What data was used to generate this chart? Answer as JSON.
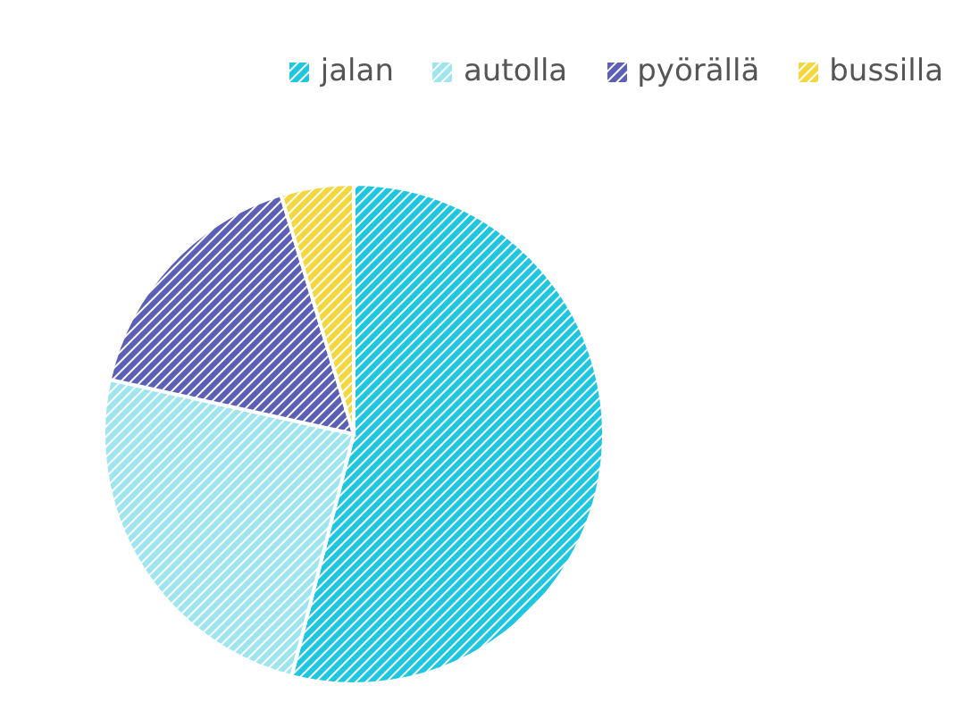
{
  "chart_data": {
    "type": "pie",
    "categories": [
      "jalan",
      "autolla",
      "pyörällä",
      "bussilla"
    ],
    "values": [
      54,
      24.5,
      16.8,
      4.7
    ],
    "colors": [
      "#1fc6df",
      "#9fe5ef",
      "#5b5fb5",
      "#f4d63e"
    ],
    "legend": "top right"
  }
}
